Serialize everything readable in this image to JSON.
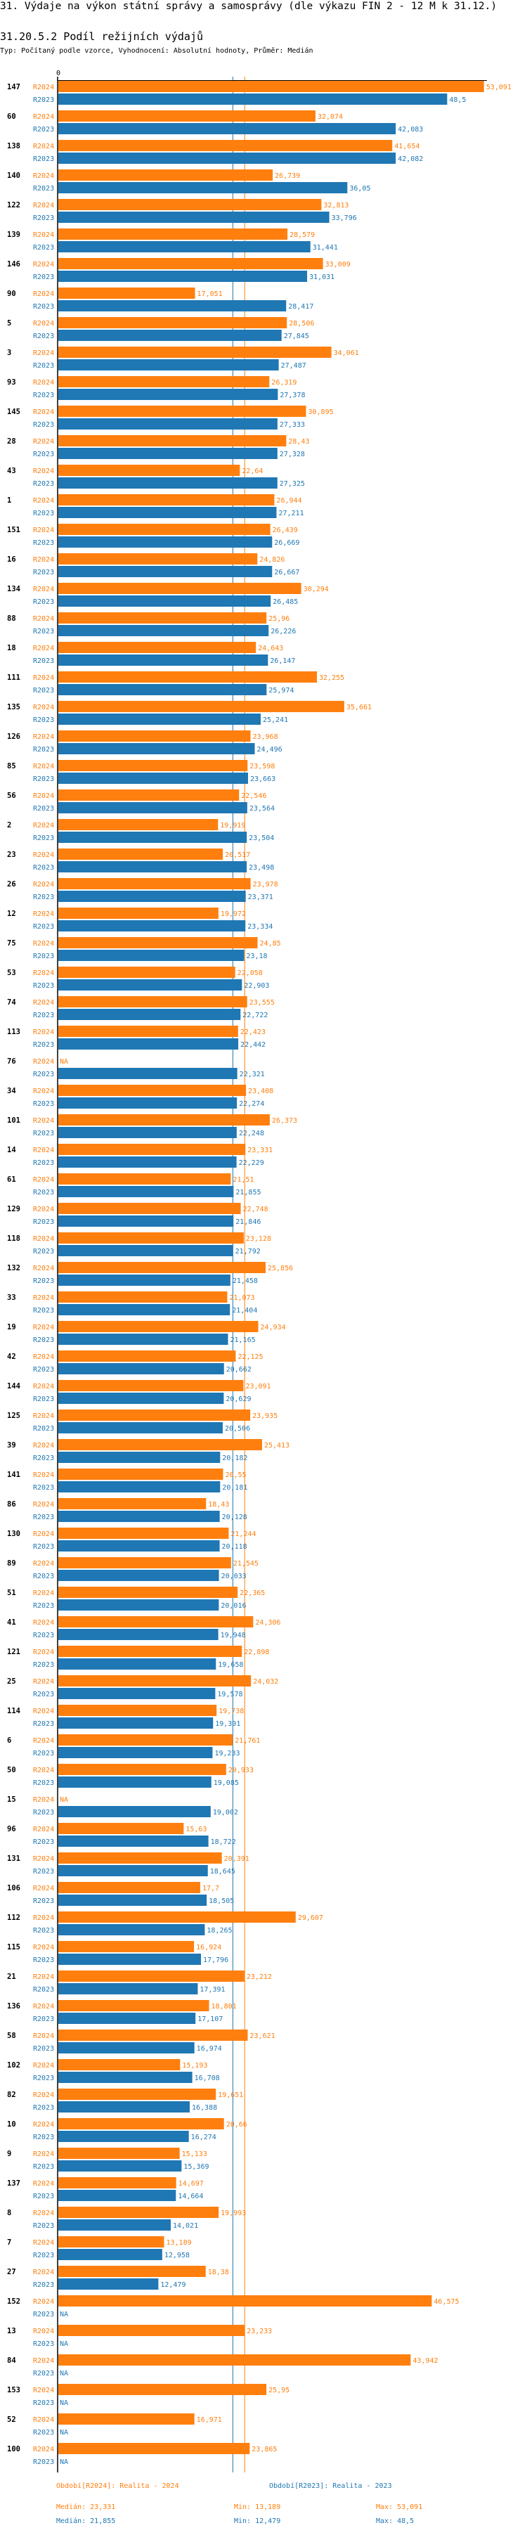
{
  "header": {
    "title": "31. Výdaje na výkon státní správy a samosprávy (dle výkazu FIN 2 - 12 M k 31.12.)",
    "subtitle": "31.20.5.2 Podíl režijních výdajů",
    "description": "Typ: Počítaný podle vzorce, Vyhodnocení: Absolutní hodnoty, Průměr: Medián"
  },
  "chart_data": {
    "type": "bar",
    "orientation": "horizontal",
    "axis_zero_label": "0",
    "xlim": [
      0,
      53.6
    ],
    "na_label": "NA",
    "categories": [
      "147",
      "60",
      "138",
      "140",
      "122",
      "139",
      "146",
      "90",
      "5",
      "3",
      "93",
      "145",
      "28",
      "43",
      "1",
      "151",
      "16",
      "134",
      "88",
      "18",
      "111",
      "135",
      "126",
      "85",
      "56",
      "2",
      "23",
      "26",
      "12",
      "75",
      "53",
      "74",
      "113",
      "76",
      "34",
      "101",
      "14",
      "61",
      "129",
      "118",
      "132",
      "33",
      "19",
      "42",
      "144",
      "125",
      "39",
      "141",
      "86",
      "130",
      "89",
      "51",
      "41",
      "121",
      "25",
      "114",
      "6",
      "50",
      "15",
      "96",
      "131",
      "106",
      "112",
      "115",
      "21",
      "136",
      "58",
      "102",
      "82",
      "10",
      "9",
      "137",
      "8",
      "7",
      "27",
      "152",
      "13",
      "84",
      "153",
      "52",
      "100"
    ],
    "series": [
      {
        "name": "R2024",
        "color": "#ff7f0e",
        "median": 23.331,
        "values": [
          53.091,
          32.074,
          41.654,
          26.739,
          32.813,
          28.579,
          33.009,
          17.051,
          28.506,
          34.061,
          26.319,
          30.895,
          28.43,
          22.64,
          26.944,
          26.439,
          24.826,
          30.294,
          25.96,
          24.643,
          32.255,
          35.661,
          23.968,
          23.598,
          22.546,
          19.919,
          20.517,
          23.978,
          19.972,
          24.85,
          22.058,
          23.555,
          22.423,
          null,
          23.408,
          26.373,
          23.331,
          21.51,
          22.748,
          23.128,
          25.856,
          21.073,
          24.934,
          22.125,
          23.091,
          23.935,
          25.413,
          20.55,
          18.43,
          21.244,
          21.545,
          22.365,
          24.306,
          22.898,
          24.032,
          19.738,
          21.761,
          20.933,
          null,
          15.63,
          20.391,
          17.7,
          29.607,
          16.924,
          23.212,
          18.801,
          23.621,
          15.193,
          19.651,
          20.66,
          15.133,
          14.697,
          19.993,
          13.189,
          18.38,
          46.575,
          23.233,
          43.942,
          25.95,
          16.971,
          23.865
        ]
      },
      {
        "name": "R2023",
        "color": "#1f77b4",
        "median": 21.855,
        "values": [
          48.5,
          42.083,
          42.082,
          36.05,
          33.796,
          31.441,
          31.031,
          28.417,
          27.845,
          27.487,
          27.378,
          27.333,
          27.328,
          27.325,
          27.211,
          26.669,
          26.667,
          26.485,
          26.226,
          26.147,
          25.974,
          25.241,
          24.496,
          23.663,
          23.564,
          23.504,
          23.498,
          23.371,
          23.334,
          23.18,
          22.903,
          22.722,
          22.442,
          22.321,
          22.274,
          22.248,
          22.229,
          21.855,
          21.846,
          21.792,
          21.458,
          21.404,
          21.165,
          20.662,
          20.629,
          20.506,
          20.182,
          20.181,
          20.128,
          20.118,
          20.033,
          20.016,
          19.948,
          19.658,
          19.578,
          19.301,
          19.233,
          19.085,
          19.002,
          18.722,
          18.645,
          18.505,
          18.265,
          17.796,
          17.391,
          17.107,
          16.974,
          16.708,
          16.388,
          16.274,
          15.369,
          14.664,
          14.021,
          12.958,
          12.479,
          null,
          null,
          null,
          null,
          null,
          null
        ]
      }
    ],
    "legend": {
      "r2024": "Období[R2024]: Realita - 2024",
      "r2023": "Období[R2023]: Realita - 2023",
      "r2024_median": "Medián: 23,331",
      "r2024_min": "Min: 13,189",
      "r2024_max": "Max: 53,091",
      "r2023_median": "Medián: 21,855",
      "r2023_min": "Min: 12,479",
      "r2023_max": "Max: 48,5"
    }
  }
}
